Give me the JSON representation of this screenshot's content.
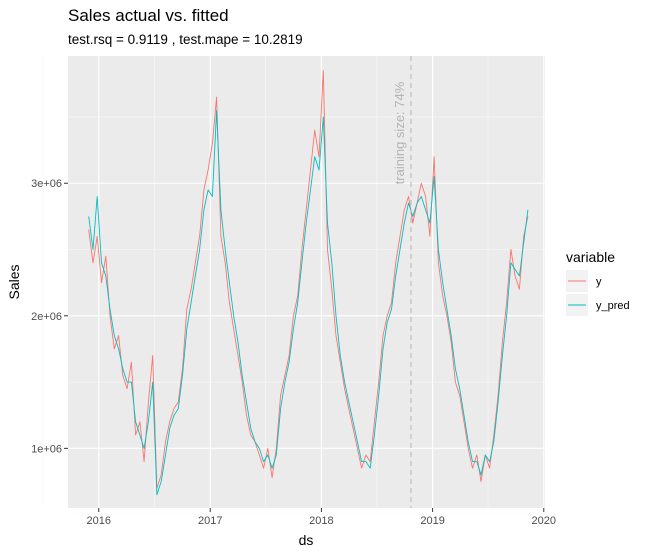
{
  "chart_data": {
    "type": "line",
    "title": "Sales actual vs. fitted",
    "subtitle": "test.rsq = 0.9119 , test.mape = 10.2819",
    "xlabel": "ds",
    "ylabel": "Sales",
    "x_ticks": [
      "2016",
      "2017",
      "2018",
      "2019",
      "2020"
    ],
    "y_ticks": [
      "1e+06",
      "2e+06",
      "3e+06"
    ],
    "xlim": [
      "2015-09-22",
      "2020-01-05"
    ],
    "ylim": [
      550000,
      3960000
    ],
    "grid": true,
    "legend_position": "right",
    "legend_title": "variable",
    "annotation": {
      "text": "training size: 74%",
      "x": "2018-10-22"
    },
    "series": [
      {
        "name": "y",
        "color": "#f8766d",
        "dates": [
          "2015-11-29",
          "2015-12-13",
          "2015-12-27",
          "2016-01-10",
          "2016-01-24",
          "2016-02-07",
          "2016-02-21",
          "2016-03-06",
          "2016-03-20",
          "2016-04-03",
          "2016-04-17",
          "2016-05-01",
          "2016-05-15",
          "2016-05-29",
          "2016-06-12",
          "2016-06-26",
          "2016-07-10",
          "2016-07-24",
          "2016-08-07",
          "2016-08-21",
          "2016-09-04",
          "2016-09-18",
          "2016-10-02",
          "2016-10-16",
          "2016-10-30",
          "2016-11-13",
          "2016-11-27",
          "2016-12-11",
          "2016-12-25",
          "2017-01-08",
          "2017-01-22",
          "2017-02-05",
          "2017-02-19",
          "2017-03-05",
          "2017-03-19",
          "2017-04-02",
          "2017-04-16",
          "2017-04-30",
          "2017-05-14",
          "2017-05-28",
          "2017-06-11",
          "2017-06-25",
          "2017-07-09",
          "2017-07-23",
          "2017-08-06",
          "2017-08-20",
          "2017-09-03",
          "2017-09-17",
          "2017-10-01",
          "2017-10-15",
          "2017-10-29",
          "2017-11-12",
          "2017-11-26",
          "2017-12-10",
          "2017-12-24",
          "2018-01-07",
          "2018-01-21",
          "2018-02-04",
          "2018-02-18",
          "2018-03-04",
          "2018-03-18",
          "2018-04-01",
          "2018-04-15",
          "2018-04-29",
          "2018-05-13",
          "2018-05-27",
          "2018-06-10",
          "2018-06-24",
          "2018-07-08",
          "2018-07-22",
          "2018-08-05",
          "2018-08-19",
          "2018-09-02",
          "2018-09-16",
          "2018-09-30",
          "2018-10-14",
          "2018-10-28",
          "2018-11-11",
          "2018-11-25",
          "2018-12-09",
          "2018-12-23",
          "2019-01-06",
          "2019-01-20",
          "2019-02-03",
          "2019-02-17",
          "2019-03-03",
          "2019-03-17",
          "2019-03-31",
          "2019-04-14",
          "2019-04-28",
          "2019-05-12",
          "2019-05-26",
          "2019-06-09",
          "2019-06-23",
          "2019-07-07",
          "2019-07-21",
          "2019-08-04",
          "2019-08-18",
          "2019-09-01",
          "2019-09-15",
          "2019-09-29",
          "2019-10-13",
          "2019-10-27",
          "2019-11-10"
        ],
        "values": [
          2650000,
          2400000,
          2600000,
          2250000,
          2450000,
          2000000,
          1750000,
          1850000,
          1550000,
          1450000,
          1650000,
          1100000,
          1200000,
          900000,
          1350000,
          1700000,
          700000,
          800000,
          1050000,
          1200000,
          1300000,
          1350000,
          1600000,
          2050000,
          2200000,
          2400000,
          2600000,
          2950000,
          3100000,
          3300000,
          3650000,
          2600000,
          2400000,
          2100000,
          1900000,
          1700000,
          1500000,
          1250000,
          1100000,
          1050000,
          950000,
          850000,
          1000000,
          780000,
          1000000,
          1400000,
          1550000,
          1700000,
          2000000,
          2150000,
          2500000,
          2800000,
          3100000,
          3400000,
          3200000,
          3850000,
          2500000,
          2200000,
          1850000,
          1650000,
          1450000,
          1300000,
          1150000,
          1000000,
          850000,
          950000,
          900000,
          1200000,
          1500000,
          1850000,
          2000000,
          2100000,
          2400000,
          2600000,
          2800000,
          2900000,
          2700000,
          2850000,
          3000000,
          2900000,
          2600000,
          3200000,
          2400000,
          2150000,
          2000000,
          1800000,
          1500000,
          1400000,
          1200000,
          1000000,
          850000,
          950000,
          750000,
          950000,
          850000,
          1100000,
          1400000,
          1800000,
          2100000,
          2500000,
          2300000,
          2200000,
          2600000,
          2750000
        ]
      },
      {
        "name": "y_pred",
        "color": "#00bfc4",
        "dates": [
          "2015-11-29",
          "2015-12-13",
          "2015-12-27",
          "2016-01-10",
          "2016-01-24",
          "2016-02-07",
          "2016-02-21",
          "2016-03-06",
          "2016-03-20",
          "2016-04-03",
          "2016-04-17",
          "2016-05-01",
          "2016-05-15",
          "2016-05-29",
          "2016-06-12",
          "2016-06-26",
          "2016-07-10",
          "2016-07-24",
          "2016-08-07",
          "2016-08-21",
          "2016-09-04",
          "2016-09-18",
          "2016-10-02",
          "2016-10-16",
          "2016-10-30",
          "2016-11-13",
          "2016-11-27",
          "2016-12-11",
          "2016-12-25",
          "2017-01-08",
          "2017-01-22",
          "2017-02-05",
          "2017-02-19",
          "2017-03-05",
          "2017-03-19",
          "2017-04-02",
          "2017-04-16",
          "2017-04-30",
          "2017-05-14",
          "2017-05-28",
          "2017-06-11",
          "2017-06-25",
          "2017-07-09",
          "2017-07-23",
          "2017-08-06",
          "2017-08-20",
          "2017-09-03",
          "2017-09-17",
          "2017-10-01",
          "2017-10-15",
          "2017-10-29",
          "2017-11-12",
          "2017-11-26",
          "2017-12-10",
          "2017-12-24",
          "2018-01-07",
          "2018-01-21",
          "2018-02-04",
          "2018-02-18",
          "2018-03-04",
          "2018-03-18",
          "2018-04-01",
          "2018-04-15",
          "2018-04-29",
          "2018-05-13",
          "2018-05-27",
          "2018-06-10",
          "2018-06-24",
          "2018-07-08",
          "2018-07-22",
          "2018-08-05",
          "2018-08-19",
          "2018-09-02",
          "2018-09-16",
          "2018-09-30",
          "2018-10-14",
          "2018-10-28",
          "2018-11-11",
          "2018-11-25",
          "2018-12-09",
          "2018-12-23",
          "2019-01-06",
          "2019-01-20",
          "2019-02-03",
          "2019-02-17",
          "2019-03-03",
          "2019-03-17",
          "2019-03-31",
          "2019-04-14",
          "2019-04-28",
          "2019-05-12",
          "2019-05-26",
          "2019-06-09",
          "2019-06-23",
          "2019-07-07",
          "2019-07-21",
          "2019-08-04",
          "2019-08-18",
          "2019-09-01",
          "2019-09-15",
          "2019-09-29",
          "2019-10-13",
          "2019-10-27",
          "2019-11-10"
        ],
        "values": [
          2750000,
          2500000,
          2900000,
          2400000,
          2300000,
          2050000,
          1850000,
          1750000,
          1600000,
          1500000,
          1500000,
          1200000,
          1100000,
          1000000,
          1200000,
          1500000,
          650000,
          750000,
          950000,
          1150000,
          1250000,
          1300000,
          1550000,
          1900000,
          2100000,
          2300000,
          2500000,
          2800000,
          2950000,
          2900000,
          3550000,
          2800000,
          2500000,
          2250000,
          2000000,
          1800000,
          1550000,
          1350000,
          1150000,
          1050000,
          1000000,
          900000,
          950000,
          850000,
          950000,
          1300000,
          1500000,
          1650000,
          1900000,
          2100000,
          2400000,
          2700000,
          2950000,
          3200000,
          3100000,
          3500000,
          2700000,
          2400000,
          2000000,
          1700000,
          1500000,
          1350000,
          1200000,
          1050000,
          900000,
          900000,
          850000,
          1100000,
          1400000,
          1750000,
          1950000,
          2050000,
          2300000,
          2500000,
          2700000,
          2850000,
          2750000,
          2850000,
          2900000,
          2800000,
          2700000,
          3050000,
          2500000,
          2250000,
          2050000,
          1850000,
          1600000,
          1450000,
          1250000,
          1050000,
          900000,
          900000,
          800000,
          950000,
          900000,
          1050000,
          1350000,
          1700000,
          2000000,
          2400000,
          2350000,
          2300000,
          2550000,
          2800000
        ]
      }
    ]
  }
}
